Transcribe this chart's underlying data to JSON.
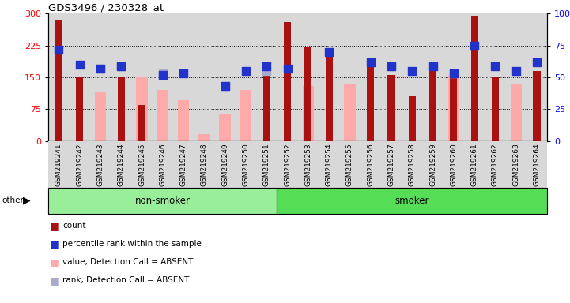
{
  "title": "GDS3496 / 230328_at",
  "samples": [
    "GSM219241",
    "GSM219242",
    "GSM219243",
    "GSM219244",
    "GSM219245",
    "GSM219246",
    "GSM219247",
    "GSM219248",
    "GSM219249",
    "GSM219250",
    "GSM219251",
    "GSM219252",
    "GSM219253",
    "GSM219254",
    "GSM219255",
    "GSM219256",
    "GSM219257",
    "GSM219258",
    "GSM219259",
    "GSM219260",
    "GSM219261",
    "GSM219262",
    "GSM219263",
    "GSM219264"
  ],
  "count": [
    285,
    150,
    null,
    150,
    85,
    null,
    null,
    null,
    null,
    null,
    155,
    280,
    220,
    205,
    null,
    185,
    155,
    105,
    170,
    155,
    295,
    150,
    null,
    165
  ],
  "rank": [
    215,
    180,
    170,
    175,
    null,
    155,
    160,
    null,
    130,
    165,
    175,
    170,
    null,
    210,
    null,
    185,
    175,
    165,
    175,
    160,
    225,
    175,
    165,
    185
  ],
  "absent_value": [
    null,
    null,
    115,
    null,
    150,
    120,
    95,
    15,
    65,
    120,
    null,
    null,
    130,
    null,
    135,
    null,
    null,
    null,
    null,
    155,
    null,
    null,
    135,
    null
  ],
  "absent_rank": [
    null,
    null,
    170,
    175,
    null,
    160,
    null,
    null,
    130,
    null,
    165,
    null,
    null,
    null,
    null,
    null,
    175,
    null,
    null,
    160,
    null,
    null,
    null,
    null
  ],
  "group_non_smoker": [
    0,
    11
  ],
  "group_smoker": [
    11,
    24
  ],
  "bar_color": "#aa1111",
  "rank_color": "#2233cc",
  "absent_value_color": "#ffaaaa",
  "absent_rank_color": "#aaaacc",
  "bg_color": "#d8d8d8",
  "non_smoker_color": "#99ee99",
  "smoker_color": "#55dd55",
  "legend_items": [
    {
      "color": "#aa1111",
      "label": "count"
    },
    {
      "color": "#2233cc",
      "label": "percentile rank within the sample"
    },
    {
      "color": "#ffaaaa",
      "label": "value, Detection Call = ABSENT"
    },
    {
      "color": "#aaaacc",
      "label": "rank, Detection Call = ABSENT"
    }
  ]
}
